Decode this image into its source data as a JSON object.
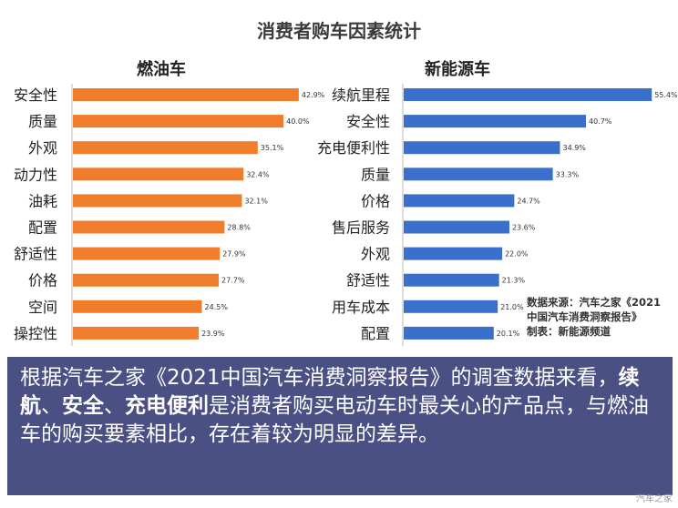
{
  "title": "消费者购车因素统计",
  "chart_data": [
    {
      "type": "bar",
      "orientation": "horizontal",
      "title": "燃油车",
      "color": "#f07d2b",
      "categories": [
        "安全性",
        "质量",
        "外观",
        "动力性",
        "油耗",
        "配置",
        "舒适性",
        "价格",
        "空间",
        "操控性"
      ],
      "values": [
        42.9,
        40.0,
        35.1,
        32.4,
        32.1,
        28.8,
        27.9,
        27.7,
        24.5,
        23.9
      ],
      "labels": [
        "42.9%",
        "40.0%",
        "35.1%",
        "32.4%",
        "32.1%",
        "28.8%",
        "27.9%",
        "27.7%",
        "24.5%",
        "23.9%"
      ],
      "xlim": [
        0,
        45
      ]
    },
    {
      "type": "bar",
      "orientation": "horizontal",
      "title": "新能源车",
      "color": "#3a6fcc",
      "categories": [
        "续航里程",
        "安全性",
        "充电便利性",
        "质量",
        "价格",
        "售后服务",
        "外观",
        "舒适性",
        "用车成本",
        "配置"
      ],
      "values": [
        55.4,
        40.7,
        34.9,
        33.3,
        24.7,
        23.6,
        22.0,
        21.3,
        21.0,
        20.1
      ],
      "labels": [
        "55.4%",
        "40.7%",
        "34.9%",
        "33.3%",
        "24.7%",
        "23.6%",
        "22.0%",
        "21.3%",
        "21.0%",
        "20.1%"
      ],
      "xlim": [
        0,
        58
      ]
    }
  ],
  "source": {
    "line1": "数据来源：汽车之家《2021",
    "line2": "中国汽车消费洞察报告》",
    "line3": "制表：新能源频道"
  },
  "summary": {
    "p1": "根据汽车之家《2021中国汽车消费洞察报告》的调查数据来看，",
    "b1": "续航",
    "p2": "、",
    "b2": "安全",
    "p3": "、",
    "b3": "充电便利",
    "p4": "是消费者购买电动车时最关心的产品点，与燃油车的购买要素相比，存在着较为明显的差异。"
  },
  "watermark": "汽车之家"
}
